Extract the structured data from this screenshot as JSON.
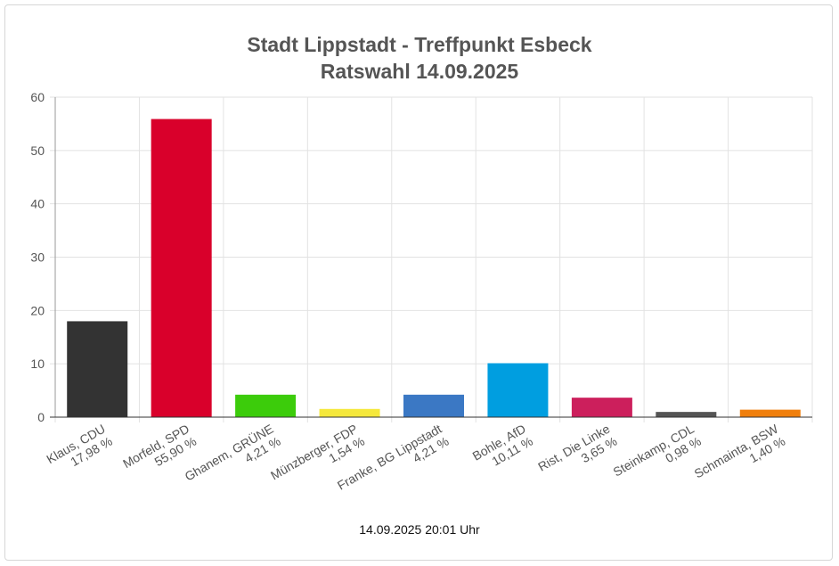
{
  "chart_data": {
    "type": "bar",
    "title": "Stadt Lippstadt - Treffpunkt Esbeck",
    "subtitle": "Ratswahl 14.09.2025",
    "categories": [
      "Klaus, CDU",
      "Morfeld, SPD",
      "Ghanem, GRÜNE",
      "Münzberger, FDP",
      "Franke, BG Lippstadt",
      "Bohle, AfD",
      "Rist, Die Linke",
      "Steinkamp, CDL",
      "Schmainta, BSW"
    ],
    "value_labels": [
      "17,98 %",
      "55,90 %",
      "4,21 %",
      "1,54 %",
      "4,21 %",
      "10,11 %",
      "3,65 %",
      "0,98 %",
      "1,40 %"
    ],
    "values": [
      17.98,
      55.9,
      4.21,
      1.54,
      4.21,
      10.11,
      3.65,
      0.98,
      1.4
    ],
    "colors": [
      "#333333",
      "#d9002b",
      "#3ccc0b",
      "#f5e83c",
      "#3b78c4",
      "#009ee0",
      "#cc1f5c",
      "#555555",
      "#f07f0c"
    ],
    "ylim": [
      0,
      60
    ],
    "yticks": [
      0,
      10,
      20,
      30,
      40,
      50,
      60
    ],
    "grid": true,
    "xlabel": "",
    "ylabel": ""
  },
  "footer": "14.09.2025 20:01 Uhr"
}
